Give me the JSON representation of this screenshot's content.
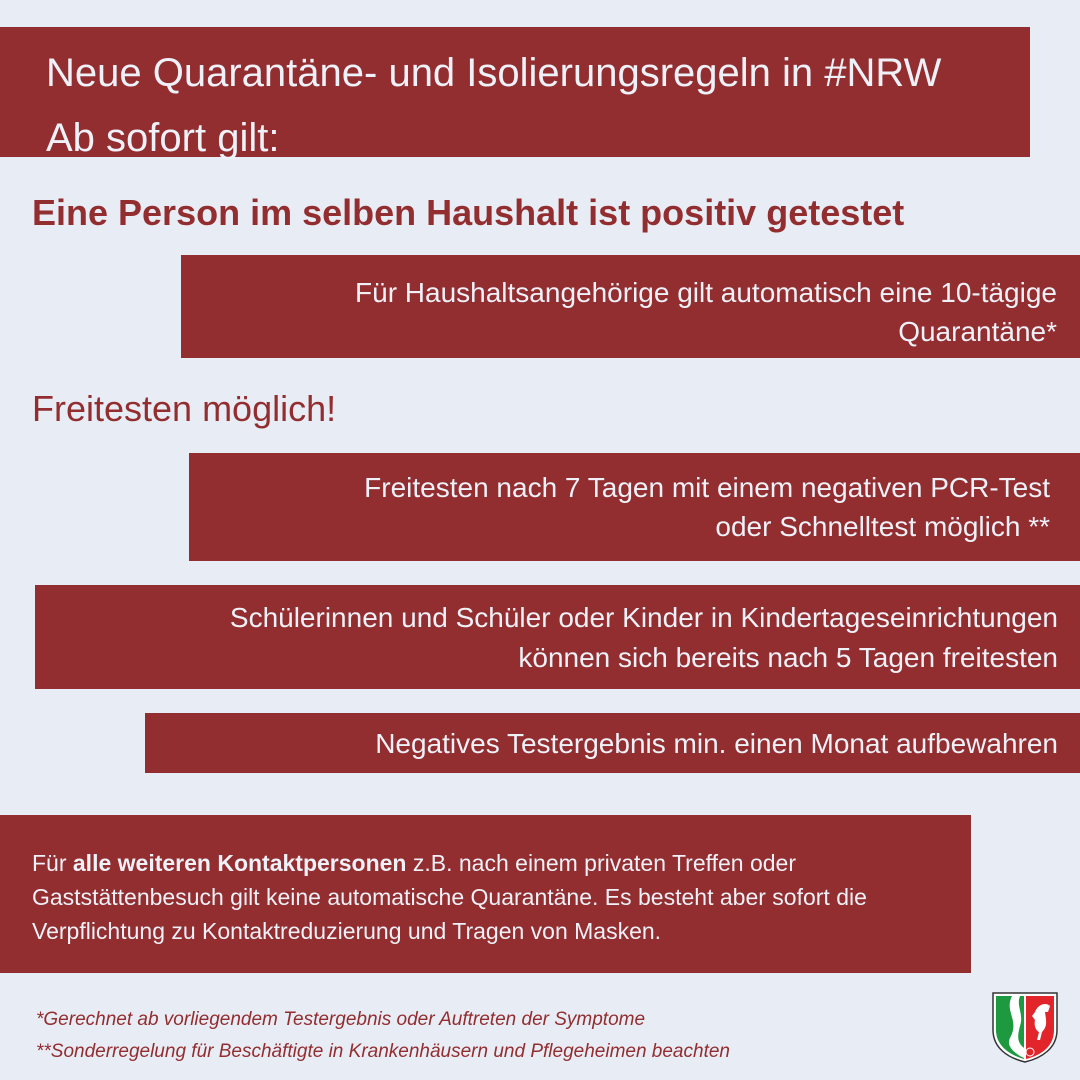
{
  "header": {
    "line1": "Neue Quarantäne- und Isolierungsregeln in #NRW",
    "line2": "Ab sofort gilt:"
  },
  "section1": {
    "heading": "Eine Person im selben Haushalt ist positiv getestet",
    "box": {
      "line1": "Für Haushaltsangehörige gilt automatisch eine 10-tägige",
      "line2": "Quarantäne*"
    }
  },
  "section2": {
    "heading": "Freitesten möglich!",
    "box1": {
      "line1": "Freitesten nach 7 Tagen mit einem negativen PCR-Test",
      "line2": "oder Schnelltest möglich **"
    },
    "box2": {
      "line1": "Schülerinnen und Schüler oder Kinder in Kindertageseinrichtungen",
      "line2": "können sich bereits nach 5 Tagen freitesten"
    },
    "box3": {
      "line1": "Negatives Testergebnis min. einen Monat aufbewahren"
    }
  },
  "contacts": {
    "prefix": "Für ",
    "bold": "alle weiteren Kontaktpersonen",
    "rest": " z.B. nach einem privaten Treffen oder Gaststättenbesuch gilt keine automatische Quarantäne. Es besteht aber sofort die Verpflichtung zu Kontaktreduzierung und Tragen von Masken."
  },
  "footnotes": [
    "*Gerechnet ab vorliegendem Testergebnis oder Auftreten der Symptome",
    "**Sonderregelung für Beschäftigte in Krankenhäusern und Pflegeheimen beachten"
  ],
  "logo": {
    "icon": "nrw-coat-of-arms-icon"
  },
  "colors": {
    "accent": "#922d30",
    "background": "#e8edf5",
    "text_light": "#eef1f7"
  }
}
